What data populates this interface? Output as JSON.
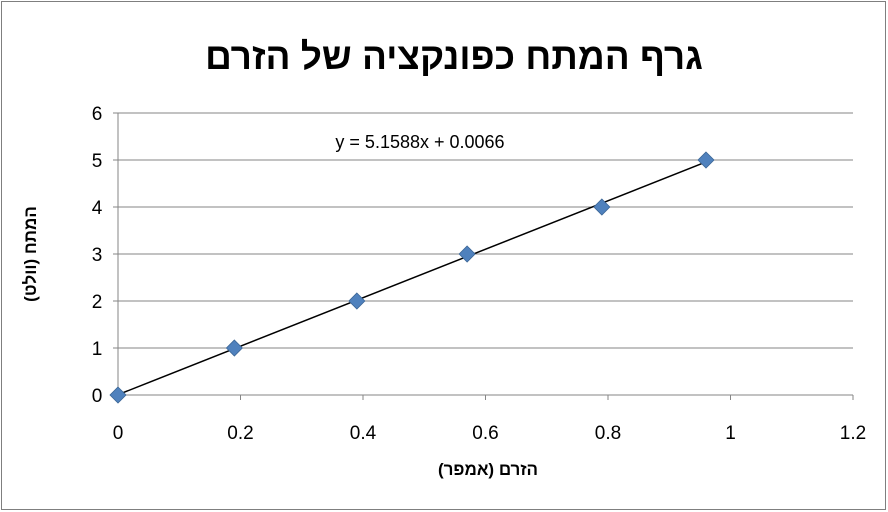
{
  "chart_data": {
    "type": "scatter",
    "title": "גרף המתח כפונקציה של הזרם",
    "xlabel": "הזרם (אמפר)",
    "ylabel": "המתח (וולט)",
    "xlim": [
      0,
      1.2
    ],
    "ylim": [
      0,
      6
    ],
    "x_ticks": [
      "0",
      "0.2",
      "0.4",
      "0.6",
      "0.8",
      "1",
      "1.2"
    ],
    "y_ticks": [
      "0",
      "1",
      "2",
      "3",
      "4",
      "5",
      "6"
    ],
    "grid": "horizontal",
    "legend": "none",
    "series": [
      {
        "points": [
          {
            "x": 0,
            "y": 0
          },
          {
            "x": 0.19,
            "y": 1
          },
          {
            "x": 0.39,
            "y": 2
          },
          {
            "x": 0.57,
            "y": 3
          },
          {
            "x": 0.79,
            "y": 4
          },
          {
            "x": 0.96,
            "y": 5
          }
        ],
        "marker": "diamond",
        "color": "#4f81bd"
      }
    ],
    "trendline": {
      "type": "linear",
      "slope": 5.1588,
      "intercept": 0.0066,
      "x_range": [
        0,
        0.96
      ],
      "equation_label": "y = 5.1588x + 0.0066",
      "color": "#000000"
    }
  }
}
